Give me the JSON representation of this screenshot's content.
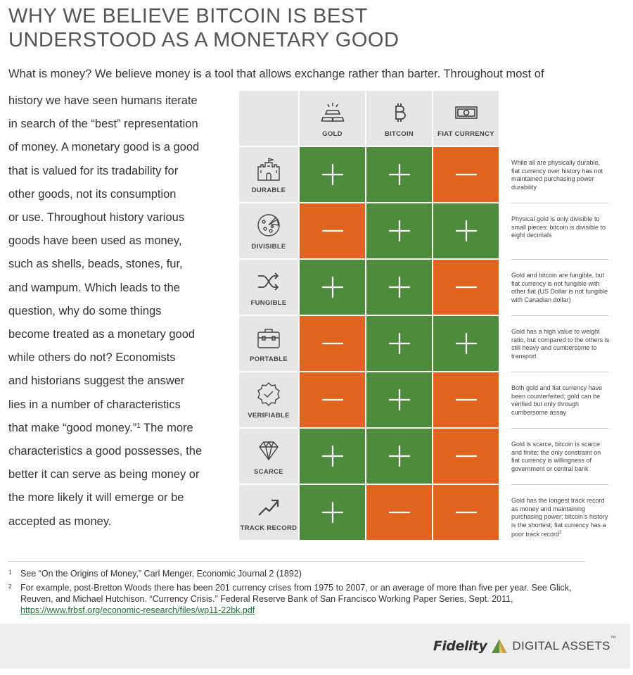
{
  "title": {
    "line1": "WHY WE BELIEVE BITCOIN IS BEST",
    "line2": "UNDERSTOOD AS A MONETARY GOOD"
  },
  "intro": "What is money? We believe money is a tool that allows exchange rather than barter. Throughout most of",
  "body_lines": [
    "history we have seen humans iterate",
    "in search of the “best” representation",
    "of money. A monetary good is a good",
    "that is valued for its tradability for",
    "other goods, not its consumption",
    "or use. Throughout history various",
    "goods have been used as money,",
    "such as shells, beads, stones, fur,",
    "and wampum. Which leads to the",
    "question, why do some things",
    "become treated as a monetary good",
    "while others do not? Economists",
    "and historians suggest the answer",
    "lies in a number of characteristics",
    "that make “good money.”",
    "characteristics a good possesses, the",
    "better it can serve as being money or",
    "the more likely it will emerge or be",
    "accepted as money."
  ],
  "body_line15_sup": "1",
  "body_line15_tail": " The more",
  "matrix": {
    "columns": [
      {
        "label": "GOLD",
        "icon": "gold-bars-icon"
      },
      {
        "label": "BITCOIN",
        "icon": "bitcoin-icon"
      },
      {
        "label": "FIAT CURRENCY",
        "icon": "banknote-icon"
      }
    ],
    "rows": [
      {
        "label": "DURABLE",
        "icon": "castle-icon",
        "values": [
          "+",
          "+",
          "-"
        ],
        "note": "While all are physically durable, fiat currency over history has not maintained purchasing power durability"
      },
      {
        "label": "DIVISIBLE",
        "icon": "pizza-icon",
        "values": [
          "-",
          "+",
          "+"
        ],
        "note": "Physical gold is only divisible to small pieces; bitcoin is divisible to eight decimals"
      },
      {
        "label": "FUNGIBLE",
        "icon": "shuffle-icon",
        "values": [
          "+",
          "+",
          "-"
        ],
        "note": "Gold and bitcoin are fungible, but fiat currency is not fungible with other fiat (US Dollar is not fungible with Canadian dollar)"
      },
      {
        "label": "PORTABLE",
        "icon": "briefcase-icon",
        "values": [
          "-",
          "+",
          "+"
        ],
        "note": "Gold has a high value to weight ratio, but compared to the others is still heavy and cumbersome to transport"
      },
      {
        "label": "VERIFIABLE",
        "icon": "check-badge-icon",
        "values": [
          "-",
          "+",
          "-"
        ],
        "note": "Both gold and fiat currency have been counterfeited; gold can be verified but only through cumbersome assay"
      },
      {
        "label": "SCARCE",
        "icon": "diamond-icon",
        "values": [
          "+",
          "+",
          "-"
        ],
        "note": "Gold is scarce, bitcoin is scarce and finite; the only constraint on fiat currency is willingness of government or central bank"
      },
      {
        "label": "TRACK RECORD",
        "icon": "trend-up-icon",
        "values": [
          "+",
          "-",
          "-"
        ],
        "note": "Gold has the longest track record as money and maintaining purchasing power; bitcoin’s history is the shortest; fiat currency has a poor track record",
        "note_sup": "2"
      }
    ],
    "colors": {
      "positive": "#4e8a3c",
      "negative": "#e06420",
      "header": "#e6e6e6"
    }
  },
  "footnotes": [
    {
      "num": "1",
      "text": "See “On the Origins of Money,” Carl Menger, Economic Journal 2 (1892)"
    },
    {
      "num": "2",
      "text": "For example, post-Bretton Woods there has been 201 currency crises from 1975 to 2007, or an average of more than five per year. See Glick, Reuven, and Michael Hutchison. “Currency Crisis.” Federal Reserve Bank of San Francisco Working Paper Series, Sept. 2011,",
      "link": "https://www.frbsf.org/economic-research/files/wp11-22bk.pdf"
    }
  ],
  "footer": {
    "brand_name": "Fidelity",
    "brand_suffix": "DIGITAL ASSETS",
    "trademark": "™"
  }
}
